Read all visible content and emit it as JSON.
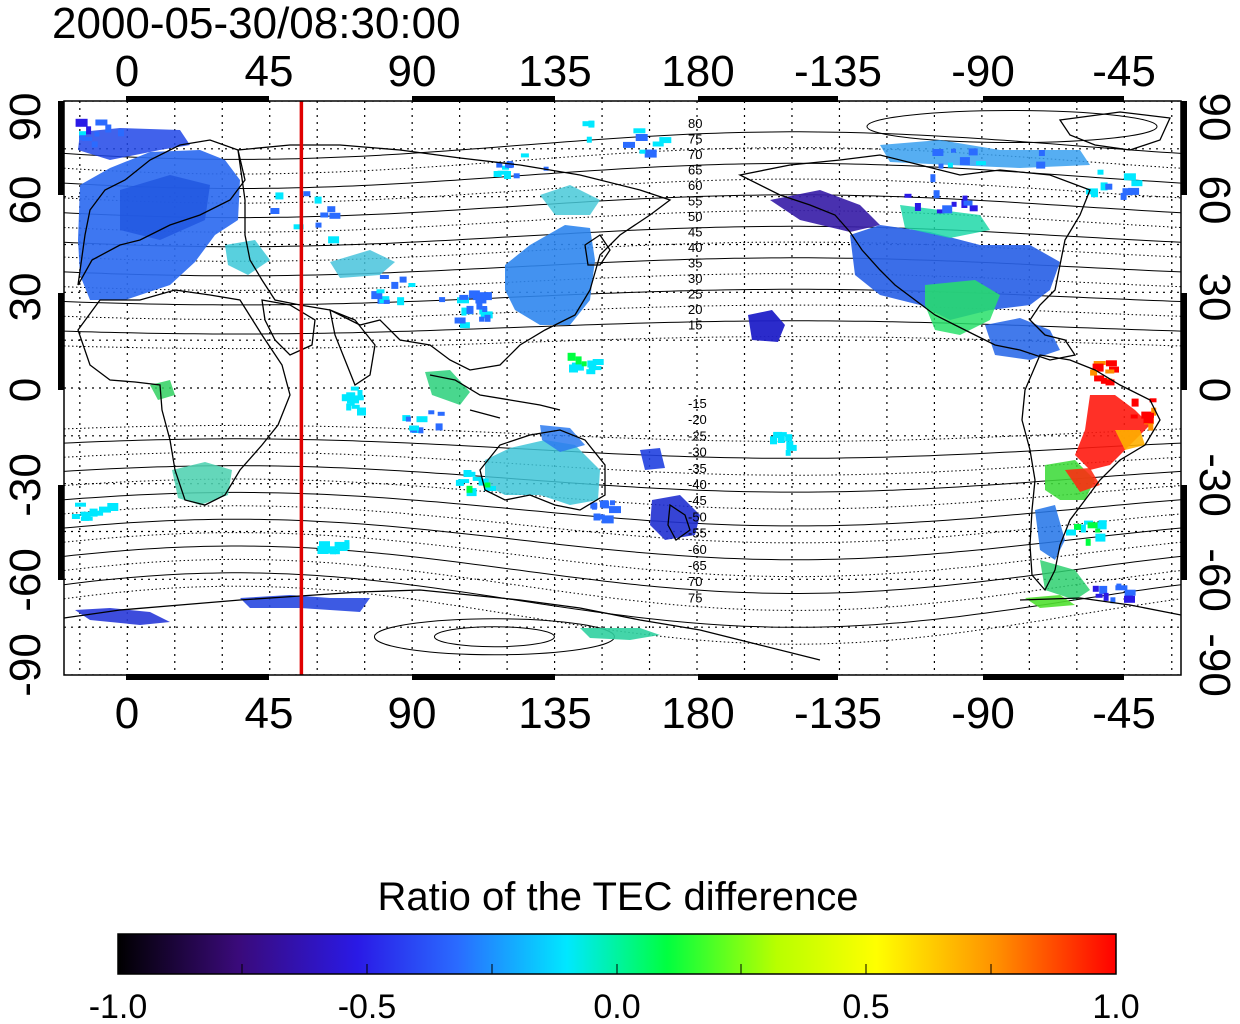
{
  "title": "2000-05-30/08:30:00",
  "map": {
    "top_lon_ticks": [
      "0",
      "45",
      "90",
      "135",
      "180",
      "-135",
      "-90",
      "-45"
    ],
    "bottom_lon_ticks": [
      "0",
      "45",
      "90",
      "135",
      "180",
      "-135",
      "-90",
      "-45"
    ],
    "left_lat_ticks": [
      "90",
      "60",
      "30",
      "0",
      "-30",
      "-60",
      "-90"
    ],
    "right_lat_ticks": [
      "90",
      "60",
      "30",
      "0",
      "-30",
      "-60",
      "-90"
    ],
    "meridian_marker_lon": 55,
    "meridian_marker_color": "#e00000",
    "north_contour_labels": [
      "80",
      "75",
      "70",
      "65",
      "60",
      "55",
      "50",
      "45",
      "40",
      "35",
      "30",
      "25",
      "20",
      "15"
    ],
    "south_contour_labels": [
      "-15",
      "-20",
      "-25",
      "-30",
      "-35",
      "-40",
      "-45",
      "-50",
      "-55",
      "-60",
      "-65",
      "70",
      "75"
    ]
  },
  "colorbar": {
    "title": "Ratio of the TEC difference",
    "tick_labels": [
      "-1.0",
      "-0.5",
      "0.0",
      "0.5",
      "1.0"
    ],
    "min": -1.0,
    "max": 1.0,
    "colormap": [
      "#000000",
      "#3a0a7a",
      "#2a1ae6",
      "#2a6bff",
      "#00e8ff",
      "#00ff40",
      "#b8ff00",
      "#ffff00",
      "#ff9000",
      "#ff0000"
    ]
  }
}
